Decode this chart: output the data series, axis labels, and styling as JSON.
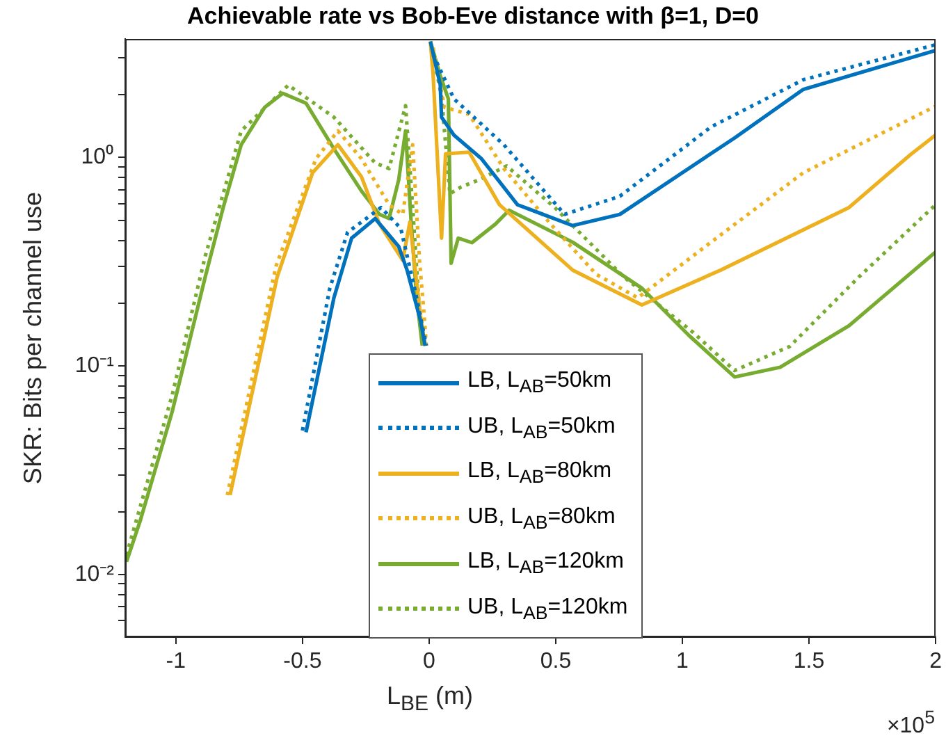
{
  "chart_data": {
    "type": "line",
    "title": "Achievable rate vs Bob-Eve distance with β=1, D=0",
    "xlabel": "L$_{BE}$ (m)",
    "ylabel": "SKR: Bits per channel use",
    "annotations": [
      "×10$^{5}$"
    ],
    "log": "y",
    "legend": "bottom",
    "xlim": [
      -1.2,
      2
    ],
    "ylim": [
      0.005,
      3.7
    ],
    "xticks": [
      -1,
      -0.5,
      0,
      0.5,
      1,
      1.5,
      2
    ],
    "yticks": [
      {
        "value": 0.006,
        "label": null
      },
      {
        "value": 0.007,
        "label": null
      },
      {
        "value": 0.008,
        "label": null
      },
      {
        "value": 0.009,
        "label": null
      },
      {
        "value": 0.01,
        "label": "10⁻²"
      },
      {
        "value": 0.02,
        "label": null
      },
      {
        "value": 0.03,
        "label": null
      },
      {
        "value": 0.04,
        "label": null
      },
      {
        "value": 0.05,
        "label": null
      },
      {
        "value": 0.06,
        "label": null
      },
      {
        "value": 0.07,
        "label": null
      },
      {
        "value": 0.08,
        "label": null
      },
      {
        "value": 0.09,
        "label": null
      },
      {
        "value": 0.1,
        "label": "10⁻¹"
      },
      {
        "value": 0.2,
        "label": null
      },
      {
        "value": 0.3,
        "label": null
      },
      {
        "value": 0.4,
        "label": null
      },
      {
        "value": 0.5,
        "label": null
      },
      {
        "value": 0.6,
        "label": null
      },
      {
        "value": 0.7,
        "label": null
      },
      {
        "value": 0.8,
        "label": null
      },
      {
        "value": 0.9,
        "label": null
      },
      {
        "value": 1,
        "label": "10⁰"
      },
      {
        "value": 2,
        "label": null
      },
      {
        "value": 3,
        "label": null
      }
    ],
    "series": [
      {
        "name": "LB, L$_{AB}$=50km",
        "color": "#0072bd",
        "line_style": "solid",
        "x": [
          -0.486,
          -0.376,
          -0.306,
          -0.213,
          -0.12,
          -0.087,
          -0.033,
          -0.016,
          0,
          0.005,
          0.044,
          0.049,
          0.098,
          0.207,
          0.349,
          0.567,
          0.753,
          1.206,
          1.478,
          2
        ],
        "values": [
          0.048,
          0.212,
          0.41,
          0.509,
          0.374,
          0.288,
          0.163,
          0.125,
          null,
          3.6,
          2.23,
          1.56,
          1.28,
          0.985,
          0.593,
          0.471,
          0.533,
          1.24,
          2.12,
          3.26
        ]
      },
      {
        "name": "UB, L$_{AB}$=50km",
        "color": "#0072bd",
        "line_style": "dotted",
        "x": [
          -0.5,
          -0.392,
          -0.322,
          -0.19,
          -0.112,
          -0.055,
          -0.011,
          0,
          0.016,
          0.098,
          0.295,
          0.535,
          0.753,
          1.113,
          1.478,
          2
        ],
        "values": [
          0.049,
          0.236,
          0.437,
          0.575,
          0.457,
          0.229,
          0.125,
          null,
          3.11,
          1.91,
          1.15,
          0.533,
          0.651,
          1.4,
          2.36,
          3.47
        ]
      },
      {
        "name": "LB, L$_{AB}$=80km",
        "color": "#edb120",
        "line_style": "solid",
        "x": [
          -0.786,
          -0.6,
          -0.46,
          -0.36,
          -0.267,
          -0.196,
          -0.104,
          -0.076,
          -0.033,
          -0.016,
          0,
          0.005,
          0.016,
          0.049,
          0.065,
          0.158,
          0.278,
          0.567,
          0.84,
          1.151,
          1.658,
          1.9,
          2
        ],
        "values": [
          0.024,
          0.267,
          0.845,
          1.15,
          0.807,
          0.479,
          0.321,
          0.49,
          0.169,
          0.125,
          null,
          3.6,
          2.47,
          0.41,
          1.04,
          1.06,
          0.593,
          0.288,
          0.196,
          0.288,
          0.575,
          1.03,
          1.28
        ]
      },
      {
        "name": "UB, L$_{AB}$=80km",
        "color": "#edb120",
        "line_style": "dotted",
        "x": [
          -0.797,
          -0.605,
          -0.447,
          -0.36,
          -0.267,
          -0.158,
          -0.104,
          -0.065,
          -0.038,
          -0.022,
          -0.011,
          0,
          0.016,
          0.06,
          0.158,
          0.295,
          0.48,
          0.66,
          0.824,
          1.113,
          1.478,
          2
        ],
        "values": [
          0.024,
          0.3,
          0.985,
          1.34,
          0.985,
          0.593,
          0.533,
          1.15,
          0.321,
          0.19,
          0.125,
          null,
          3.36,
          1.74,
          1.61,
          0.885,
          0.479,
          0.275,
          0.212,
          0.392,
          0.845,
          1.76
        ]
      },
      {
        "name": "LB, L$_{AB}$=120km",
        "color": "#77ac30",
        "line_style": "solid",
        "x": [
          -1.195,
          -1.14,
          -1.015,
          -0.884,
          -0.813,
          -0.742,
          -0.649,
          -0.578,
          -0.486,
          -0.376,
          -0.267,
          -0.196,
          -0.158,
          -0.12,
          -0.093,
          -0.071,
          -0.049,
          -0.027,
          0,
          0.005,
          0.044,
          0.076,
          0.087,
          0.115,
          0.169,
          0.262,
          0.316,
          0.567,
          0.84,
          1.026,
          1.206,
          1.386,
          1.658,
          2
        ],
        "values": [
          0.0115,
          0.0182,
          0.06,
          0.267,
          0.575,
          1.15,
          1.74,
          2.03,
          1.82,
          1.1,
          0.69,
          0.533,
          0.509,
          0.782,
          1.34,
          0.49,
          0.212,
          0.125,
          null,
          3.6,
          2.47,
          1.91,
          0.311,
          0.41,
          0.39,
          0.479,
          0.558,
          0.392,
          0.236,
          0.14,
          0.0885,
          0.0985,
          0.156,
          0.352
        ]
      },
      {
        "name": "UB, L$_{AB}$=120km",
        "color": "#77ac30",
        "line_style": "dotted",
        "x": [
          -1.195,
          -1.015,
          -0.884,
          -0.742,
          -0.556,
          -0.376,
          -0.213,
          -0.158,
          -0.093,
          -0.065,
          -0.038,
          -0.016,
          0,
          0.016,
          0.049,
          0.082,
          0.125,
          0.196,
          0.306,
          0.496,
          0.769,
          1.042,
          1.206,
          1.424,
          1.697,
          2
        ],
        "values": [
          0.0124,
          0.072,
          0.336,
          1.34,
          2.22,
          1.56,
          0.94,
          0.885,
          1.77,
          0.575,
          0.182,
          0.125,
          null,
          3.11,
          1.96,
          0.67,
          0.72,
          0.78,
          0.91,
          0.575,
          0.267,
          0.145,
          0.095,
          0.124,
          0.267,
          0.593
        ]
      }
    ]
  }
}
